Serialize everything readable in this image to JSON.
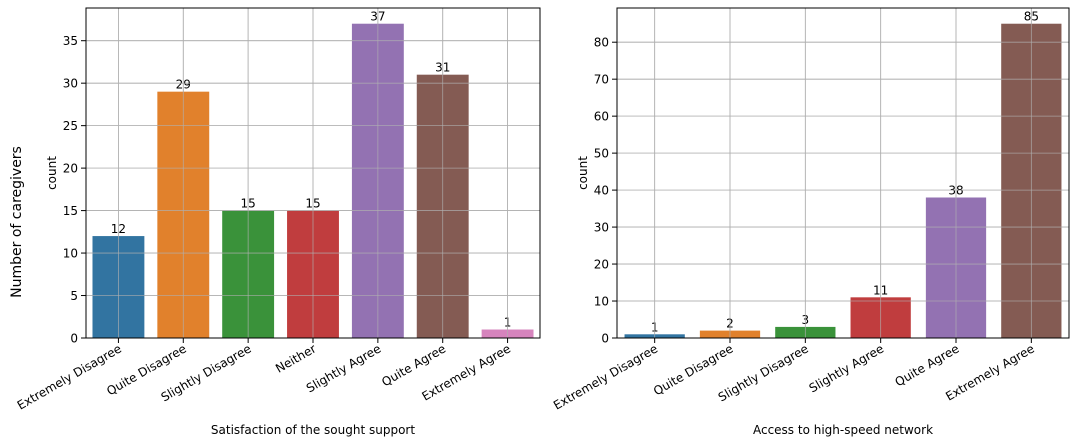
{
  "figure": {
    "ylabel": "Number of caregivers"
  },
  "chart_data": [
    {
      "type": "bar",
      "xlabel": "Satisfaction of the sought support",
      "ylabel": "count",
      "categories": [
        "Extremely Disagree",
        "Quite Disagree",
        "Slightly Disagree",
        "Neither",
        "Slightly Agree",
        "Quite Agree",
        "Extremely Agree"
      ],
      "values": [
        12,
        29,
        15,
        15,
        37,
        31,
        1
      ],
      "colors": [
        "#3274a1",
        "#e1812c",
        "#3a923a",
        "#c03d3e",
        "#9372b2",
        "#845b53",
        "#d684bd"
      ],
      "yticks": [
        0,
        5,
        10,
        15,
        20,
        25,
        30,
        35
      ],
      "ylim": [
        0,
        38.85
      ],
      "grid": true
    },
    {
      "type": "bar",
      "xlabel": "Access to high-speed network",
      "ylabel": "count",
      "categories": [
        "Extremely Disagree",
        "Quite Disagree",
        "Slightly Disagree",
        "Slightly Agree",
        "Quite Agree",
        "Extremely Agree"
      ],
      "values": [
        1,
        2,
        3,
        11,
        38,
        85
      ],
      "colors": [
        "#3274a1",
        "#e1812c",
        "#3a923a",
        "#c03d3e",
        "#9372b2",
        "#845b53"
      ],
      "yticks": [
        0,
        10,
        20,
        30,
        40,
        50,
        60,
        70,
        80
      ],
      "ylim": [
        0,
        89.25
      ],
      "grid": true
    }
  ]
}
